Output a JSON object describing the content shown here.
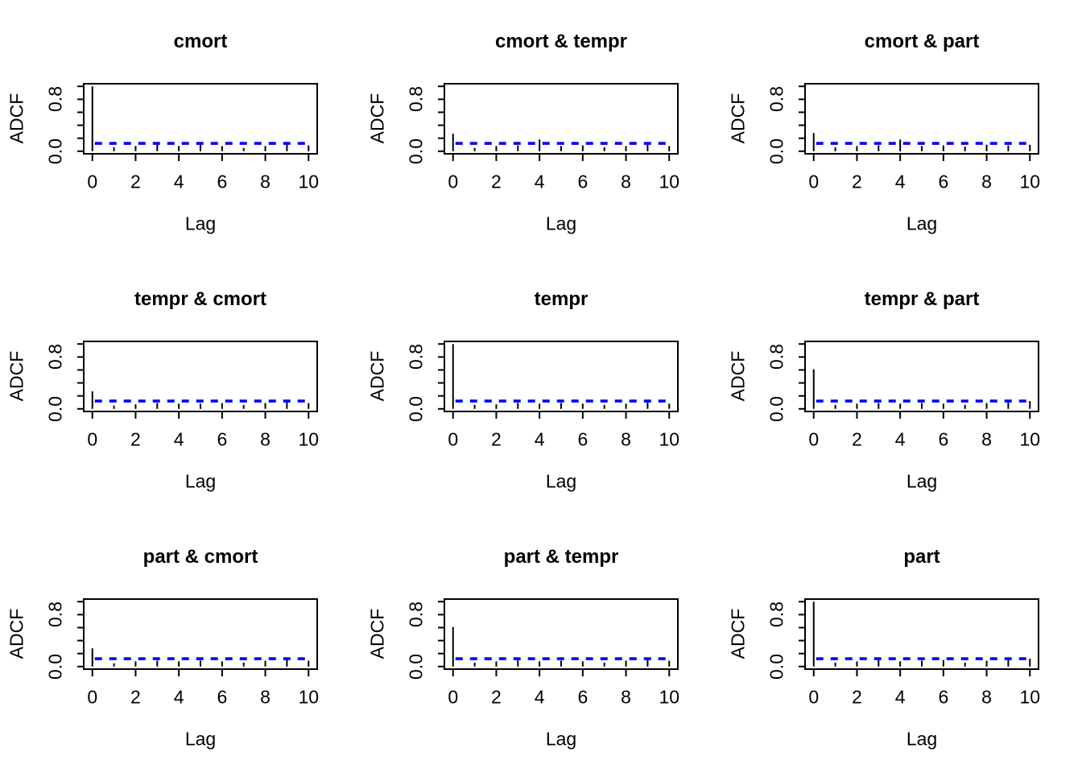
{
  "background": "#ffffff",
  "text_color": "#000000",
  "chart_data": {
    "type": "bar",
    "subtype": "adcf-spike-grid",
    "grid": {
      "rows": 3,
      "cols": 3
    },
    "variables": [
      "cmort",
      "tempr",
      "part"
    ],
    "xlabel": "Lag",
    "ylabel": "ADCF",
    "xlim": [
      0,
      10
    ],
    "ylim": [
      0,
      1
    ],
    "xticks": [
      0,
      2,
      4,
      6,
      8,
      10
    ],
    "xtick_labels": [
      "0",
      "2",
      "4",
      "6",
      "8",
      "10"
    ],
    "ytick_values": [
      0,
      0.2,
      0.4,
      0.6,
      0.8,
      1.0
    ],
    "ytick_labels": [
      {
        "value": 0.0,
        "label": "0.0"
      },
      {
        "value": 0.8,
        "label": "0.8"
      }
    ],
    "grid_lines": false,
    "legend": null,
    "spike_color": "#000000",
    "box_color": "#000000",
    "significance_line": {
      "value": 0.12,
      "style": "dashed",
      "color": "#0000FF",
      "span_lags": [
        0,
        10
      ]
    },
    "lags": [
      0,
      1,
      2,
      3,
      4,
      5,
      6,
      7,
      8,
      9,
      10
    ],
    "panels": [
      {
        "title": "cmort",
        "values": [
          1.0,
          0.06,
          0.08,
          0.1,
          0.08,
          0.1,
          0.08,
          0.05,
          0.08,
          0.11,
          0.09
        ]
      },
      {
        "title": "cmort & tempr",
        "values": [
          0.27,
          0.05,
          0.08,
          0.09,
          0.18,
          0.08,
          0.09,
          0.06,
          0.08,
          0.1,
          0.08
        ]
      },
      {
        "title": "cmort & part",
        "values": [
          0.28,
          0.06,
          0.08,
          0.09,
          0.18,
          0.08,
          0.09,
          0.07,
          0.1,
          0.09,
          0.1
        ]
      },
      {
        "title": "tempr & cmort",
        "values": [
          0.27,
          0.05,
          0.07,
          0.09,
          0.08,
          0.08,
          0.09,
          0.06,
          0.09,
          0.11,
          0.09
        ]
      },
      {
        "title": "tempr",
        "values": [
          1.0,
          0.06,
          0.07,
          0.09,
          0.08,
          0.09,
          0.08,
          0.06,
          0.08,
          0.1,
          0.08
        ]
      },
      {
        "title": "tempr & part",
        "values": [
          0.61,
          0.06,
          0.08,
          0.09,
          0.08,
          0.09,
          0.08,
          0.06,
          0.09,
          0.1,
          0.12
        ]
      },
      {
        "title": "part & cmort",
        "values": [
          0.28,
          0.05,
          0.08,
          0.09,
          0.08,
          0.09,
          0.08,
          0.06,
          0.09,
          0.1,
          0.09
        ]
      },
      {
        "title": "part & tempr",
        "values": [
          0.61,
          0.06,
          0.08,
          0.1,
          0.08,
          0.09,
          0.08,
          0.06,
          0.09,
          0.1,
          0.09
        ]
      },
      {
        "title": "part",
        "values": [
          1.0,
          0.06,
          0.08,
          0.11,
          0.08,
          0.09,
          0.1,
          0.06,
          0.09,
          0.1,
          0.12
        ]
      }
    ]
  }
}
